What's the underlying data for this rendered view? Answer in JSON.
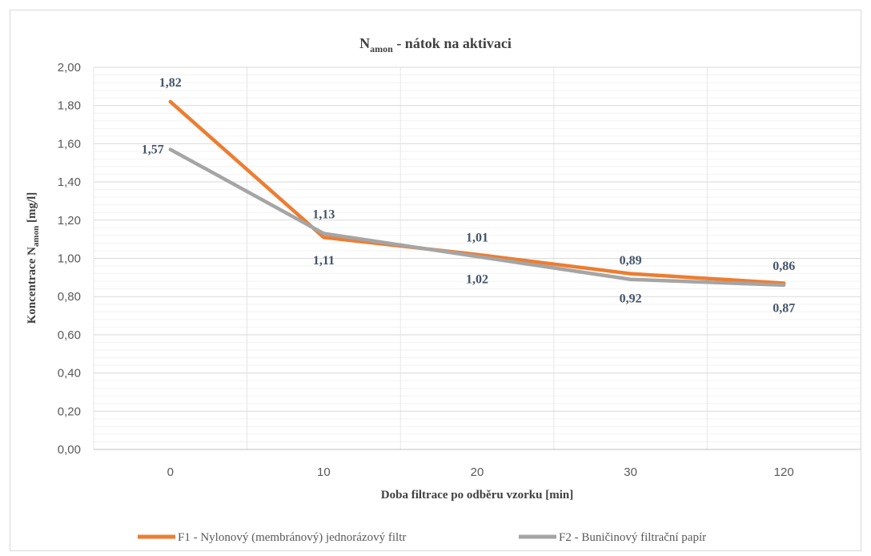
{
  "chart_data": {
    "type": "line",
    "title_main": "N",
    "title_sub": "amon",
    "title_rest": " - nátok na aktivaci",
    "xlabel": "Doba filtrace po odběru vzorku [min]",
    "ylabel_main": "Koncentrace N",
    "ylabel_sub": "amon",
    "ylabel_rest": " [mg/l]",
    "categories": [
      "0",
      "10",
      "20",
      "30",
      "120"
    ],
    "ylim": [
      0,
      2
    ],
    "yticks": [
      "0,00",
      "0,20",
      "0,40",
      "0,60",
      "0,80",
      "1,00",
      "1,20",
      "1,40",
      "1,60",
      "1,80",
      "2,00"
    ],
    "grid": true,
    "legend_position": "bottom",
    "series": [
      {
        "name": "F1 - Nylonový (membránový) jednorázový filtr",
        "color": "#ed7d31",
        "values": [
          1.82,
          1.11,
          1.02,
          0.92,
          0.87
        ]
      },
      {
        "name": "F2 - Buničinový filtrační papír",
        "color": "#a5a5a5",
        "values": [
          1.57,
          1.13,
          1.01,
          0.89,
          0.86
        ]
      }
    ],
    "data_labels": [
      {
        "text": "1,82",
        "cat": 0,
        "val": 1.92,
        "series": 0
      },
      {
        "text": "1,57",
        "cat": 0,
        "val": 1.57,
        "series": 1,
        "side": "left"
      },
      {
        "text": "1,13",
        "cat": 1,
        "val": 1.23,
        "series": 1
      },
      {
        "text": "1,11",
        "cat": 1,
        "val": 0.99,
        "series": 0
      },
      {
        "text": "1,01",
        "cat": 2,
        "val": 1.11,
        "series": 1
      },
      {
        "text": "1,02",
        "cat": 2,
        "val": 0.89,
        "series": 0
      },
      {
        "text": "0,89",
        "cat": 3,
        "val": 0.99,
        "series": 1
      },
      {
        "text": "0,92",
        "cat": 3,
        "val": 0.79,
        "series": 0
      },
      {
        "text": "0,86",
        "cat": 4,
        "val": 0.96,
        "series": 1
      },
      {
        "text": "0,87",
        "cat": 4,
        "val": 0.74,
        "series": 0
      }
    ]
  }
}
